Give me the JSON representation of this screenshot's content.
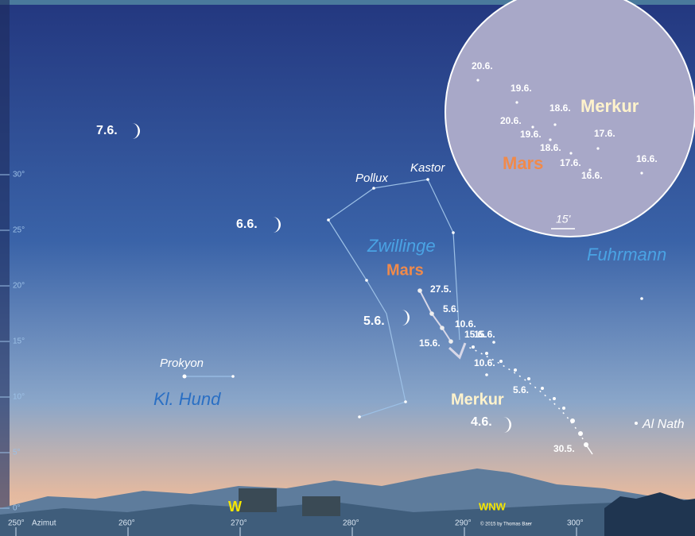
{
  "altitude_axis": {
    "ticks": [
      {
        "value": 0,
        "label": "0°"
      },
      {
        "value": 5,
        "label": "5°"
      },
      {
        "value": 10,
        "label": "10°"
      },
      {
        "value": 15,
        "label": "15°"
      },
      {
        "value": 20,
        "label": "20°"
      },
      {
        "value": 25,
        "label": "25°"
      },
      {
        "value": 30,
        "label": "30°"
      }
    ]
  },
  "azimuth_axis": {
    "title": "Azimut",
    "ticks": [
      {
        "value": 250,
        "label": "250°"
      },
      {
        "value": 260,
        "label": "260°"
      },
      {
        "value": 270,
        "label": "270°"
      },
      {
        "value": 280,
        "label": "280°"
      },
      {
        "value": 290,
        "label": "290°"
      },
      {
        "value": 300,
        "label": "300°"
      }
    ]
  },
  "directions": [
    "W",
    "WNW"
  ],
  "constellations": [
    "Zwillinge",
    "Kl. Hund",
    "Fuhrmann"
  ],
  "stars": [
    "Pollux",
    "Kastor",
    "Prokyon",
    "Al Nath"
  ],
  "moon_dates": [
    "7.6.",
    "6.6.",
    "5.6.",
    "4.6."
  ],
  "planets": [
    "Mars",
    "Merkur"
  ],
  "mars_dates": [
    "27.5.",
    "5.6.",
    "10.6.",
    "15.6."
  ],
  "merkur_dates": [
    "30.5.",
    "5.6.",
    "10.6.",
    "15.6."
  ],
  "inset": {
    "planets": [
      "Merkur",
      "Mars"
    ],
    "dates": [
      "20.6.",
      "19.6.",
      "20.6.",
      "18.6.",
      "19.6.",
      "18.6.",
      "17.6.",
      "17.6.",
      "16.6.",
      "16.6."
    ],
    "scale": "15'"
  },
  "copyright": "© 2015 by Thomas Baer"
}
